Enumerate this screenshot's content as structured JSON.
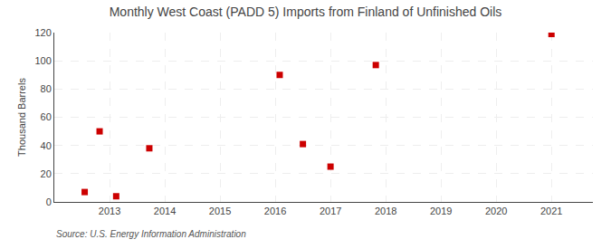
{
  "chart_data": {
    "type": "scatter",
    "title": "Monthly West Coast (PADD 5) Imports from Finland of Unfinished Oils",
    "ylabel": "Thousand Barrels",
    "annotations": [
      "Source: U.S. Energy Information Administration"
    ],
    "x": [
      2012.55,
      2012.82,
      2013.12,
      2013.72,
      2016.08,
      2016.5,
      2017.0,
      2017.82,
      2021.0
    ],
    "values": [
      7,
      50,
      4,
      38,
      90,
      41,
      25,
      97,
      119
    ],
    "color": "#cc0000",
    "marker": "square",
    "xlim": [
      2012.0,
      2021.75
    ],
    "ylim": [
      0,
      120
    ],
    "xticks": [
      2013,
      2014,
      2015,
      2016,
      2017,
      2018,
      2019,
      2020,
      2021
    ],
    "yticks": [
      0,
      20,
      40,
      60,
      80,
      100,
      120
    ],
    "grid": true
  }
}
